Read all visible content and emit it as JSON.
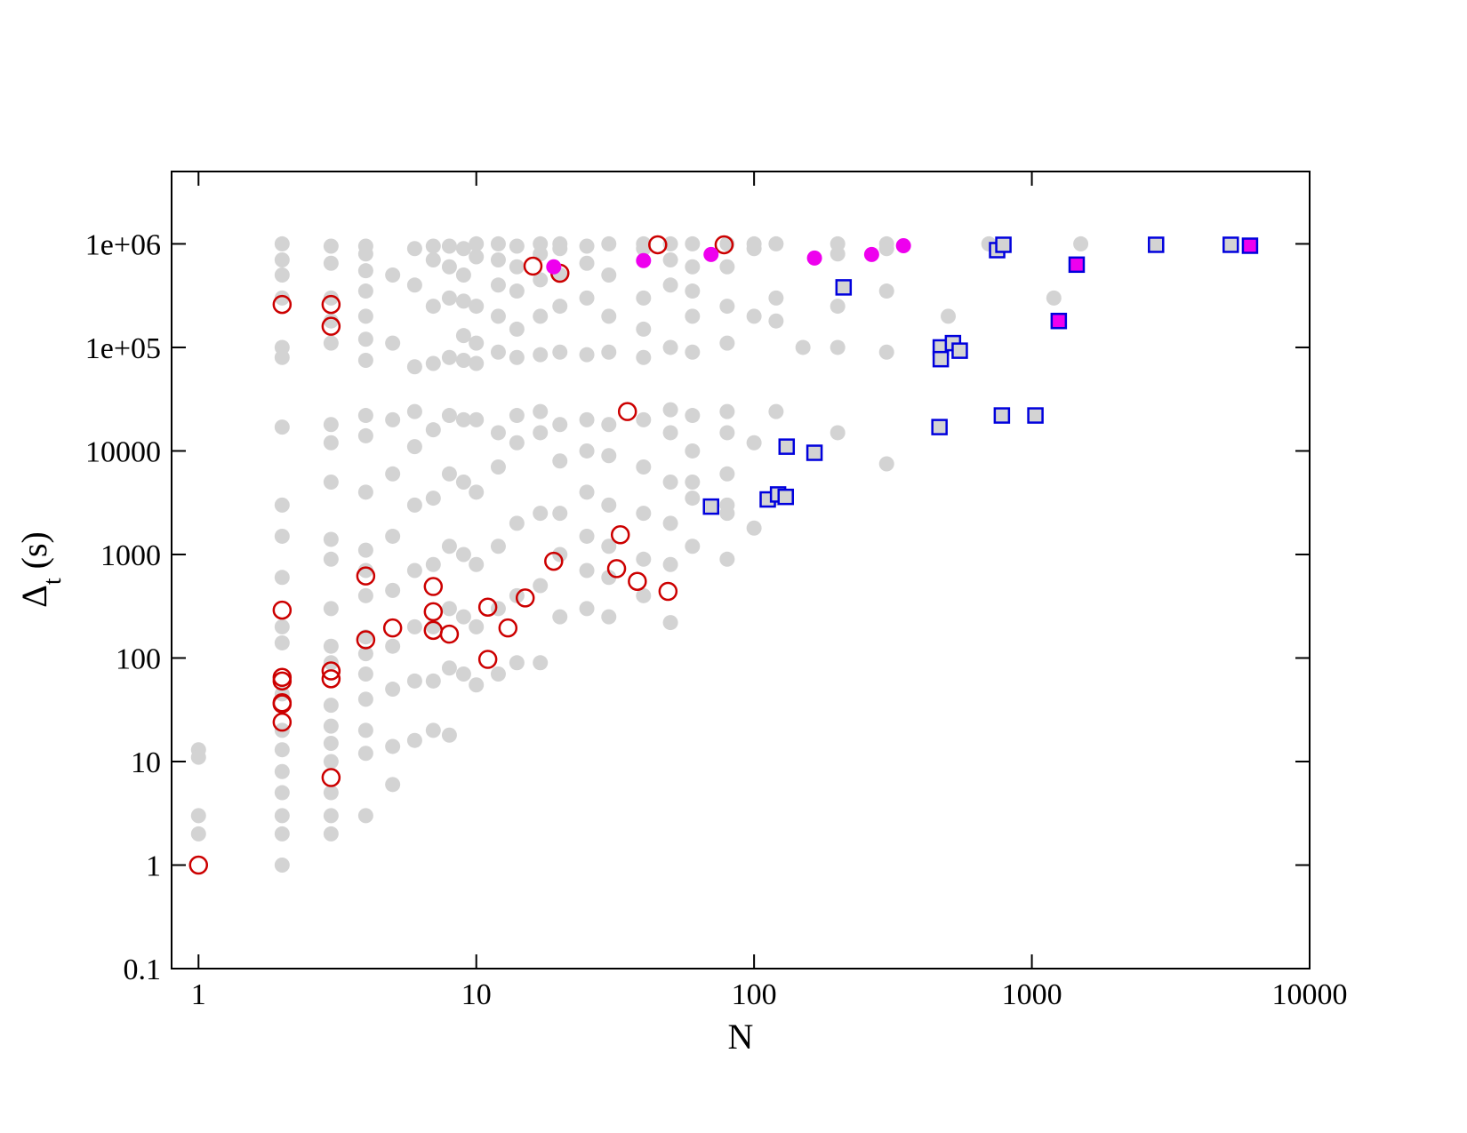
{
  "chart_data": {
    "type": "scatter",
    "xlabel": "N",
    "ylabel": [
      "Δ",
      "t",
      "(s)"
    ],
    "xscale": "log",
    "yscale": "log",
    "xlim": [
      0.8,
      10000
    ],
    "ylim": [
      0.1,
      5000000
    ],
    "xticks": [
      1,
      10,
      100,
      1000,
      10000
    ],
    "yticks": [
      0.1,
      1,
      10,
      100,
      1000,
      10000,
      {
        "value": 100000,
        "label": "1e+05"
      },
      {
        "value": 1000000,
        "label": "1e+06"
      }
    ],
    "series": [
      {
        "marker": "circle",
        "color": "#d3d3d3",
        "fill": "#d3d3d3",
        "x": [
          1,
          1,
          1,
          1,
          2,
          2,
          2,
          2,
          2,
          2,
          2,
          2,
          2,
          2,
          2,
          2,
          2,
          2,
          2,
          2,
          2,
          2,
          2,
          2,
          3,
          3,
          3,
          3,
          3,
          3,
          3,
          3,
          3,
          3,
          3,
          3,
          3,
          3,
          3,
          3,
          3,
          3,
          3,
          3,
          4,
          4,
          4,
          4,
          4,
          4,
          4,
          4,
          4,
          4,
          4,
          4,
          4,
          4,
          4,
          4,
          4,
          4,
          4,
          4,
          5,
          5,
          5,
          5,
          5,
          5,
          5,
          5,
          5,
          5,
          6,
          6,
          6,
          6,
          6,
          6,
          6,
          6,
          6,
          6,
          7,
          7,
          7,
          7,
          7,
          7,
          7,
          7,
          7,
          7,
          8,
          8,
          8,
          8,
          8,
          8,
          8,
          8,
          8,
          8,
          9,
          9,
          9,
          9,
          9,
          9,
          9,
          9,
          9,
          9,
          10,
          10,
          10,
          10,
          10,
          10,
          10,
          10,
          10,
          10,
          12,
          12,
          12,
          12,
          12,
          12,
          12,
          12,
          12,
          12,
          14,
          14,
          14,
          14,
          14,
          14,
          14,
          14,
          14,
          14,
          17,
          17,
          17,
          17,
          17,
          17,
          17,
          17,
          17,
          17,
          20,
          20,
          20,
          20,
          20,
          20,
          20,
          20,
          20,
          20,
          25,
          25,
          25,
          25,
          25,
          25,
          25,
          25,
          25,
          25,
          30,
          30,
          30,
          30,
          30,
          30,
          30,
          30,
          30,
          30,
          40,
          40,
          40,
          40,
          40,
          40,
          40,
          40,
          40,
          40,
          50,
          50,
          50,
          50,
          50,
          50,
          50,
          50,
          50,
          50,
          60,
          60,
          60,
          60,
          60,
          60,
          60,
          60,
          60,
          60,
          80,
          80,
          80,
          80,
          80,
          80,
          80,
          80,
          80,
          80,
          100,
          100,
          100,
          100,
          100,
          120,
          120,
          120,
          120,
          120,
          200,
          200,
          200,
          200,
          200,
          300,
          300,
          300,
          300,
          300,
          150,
          500,
          700,
          1200,
          1500
        ],
        "values": [
          13,
          11,
          3,
          2,
          1,
          3,
          8,
          20,
          45,
          140,
          600,
          3000,
          17000,
          100000,
          300000,
          700000,
          1000000,
          2,
          5,
          13,
          200,
          1500,
          80000,
          500000,
          2,
          5,
          15,
          35,
          90,
          300,
          900,
          5000,
          18000,
          110000,
          300000,
          650000,
          950000,
          3,
          10,
          22,
          130,
          1400,
          12000,
          180000,
          3,
          12,
          40,
          110,
          400,
          1100,
          4000,
          14000,
          75000,
          200000,
          350000,
          550000,
          950000,
          20,
          160,
          700,
          22000,
          120000,
          800000,
          70,
          6,
          14,
          50,
          130,
          450,
          1500,
          6000,
          20000,
          110000,
          500000,
          16,
          60,
          200,
          700,
          3000,
          11000,
          24000,
          65000,
          400000,
          900000,
          20,
          60,
          200,
          800,
          3500,
          16000,
          70000,
          250000,
          700000,
          950000,
          18,
          80,
          300,
          1200,
          6000,
          22000,
          80000,
          300000,
          600000,
          950000,
          70,
          250,
          1000,
          5000,
          20000,
          75000,
          130000,
          280000,
          500000,
          900000,
          55,
          200,
          800,
          4000,
          20000,
          70000,
          110000,
          250000,
          750000,
          1000000,
          70,
          300,
          1200,
          7000,
          15000,
          90000,
          200000,
          400000,
          700000,
          1000000,
          90,
          400,
          2000,
          12000,
          22000,
          80000,
          150000,
          350000,
          600000,
          950000,
          90,
          500,
          2500,
          15000,
          24000,
          85000,
          200000,
          450000,
          800000,
          1000000,
          250,
          1000,
          2500,
          8000,
          18000,
          90000,
          250000,
          500000,
          900000,
          1000000,
          300,
          1500,
          4000,
          10000,
          20000,
          85000,
          300000,
          650000,
          950000,
          700,
          250,
          1200,
          3000,
          9000,
          18000,
          90000,
          200000,
          500000,
          1000000,
          600,
          400,
          900,
          2500,
          7000,
          20000,
          80000,
          300000,
          900000,
          1000000,
          150000,
          220,
          800,
          2000,
          5000,
          15000,
          25000,
          100000,
          400000,
          1000000,
          700000,
          1200,
          3500,
          10000,
          22000,
          90000,
          350000,
          1000000,
          600000,
          200000,
          5000,
          900,
          2500,
          6000,
          15000,
          24000,
          110000,
          600000,
          1000000,
          250000,
          3000,
          1800,
          12000,
          200000,
          900000,
          1000000,
          3500,
          24000,
          180000,
          1000000,
          300000,
          15000,
          100000,
          250000,
          1000000,
          800000,
          7500,
          90000,
          350000,
          1000000,
          900000,
          100000,
          200000,
          1000000,
          300000,
          1000000
        ]
      },
      {
        "marker": "circle",
        "color": "#cc0000",
        "fill": "none",
        "x": [
          1,
          2,
          3,
          3,
          2,
          2,
          2,
          2,
          2,
          2,
          3,
          3,
          3,
          4,
          4,
          5,
          7,
          7,
          7,
          8,
          11,
          11,
          13,
          15,
          16,
          19,
          20,
          32,
          33,
          35,
          38,
          45,
          49,
          78
        ],
        "values": [
          1,
          260000,
          260000,
          160000,
          290,
          65,
          60,
          37,
          36,
          24,
          75,
          63,
          7,
          620,
          150,
          195,
          490,
          280,
          185,
          170,
          310,
          97,
          195,
          380,
          610000,
          860,
          520000,
          730,
          1550,
          24000,
          550,
          980000,
          440,
          980000
        ]
      },
      {
        "marker": "circle",
        "color": "#ee00ee",
        "fill": "#ee00ee",
        "x": [
          19,
          40,
          70,
          165,
          265,
          345
        ],
        "values": [
          600000,
          690000,
          790000,
          730000,
          790000,
          960000
        ]
      },
      {
        "marker": "square",
        "color": "#0000dd",
        "fill": "#d3d3d3",
        "x": [
          70,
          112,
          122,
          130,
          131,
          165,
          210,
          465,
          470,
          470,
          520,
          550,
          750,
          790,
          780,
          1030,
          2800,
          5200
        ],
        "values": [
          2900,
          3400,
          3800,
          3600,
          11000,
          9600,
          380000,
          17000,
          100000,
          77000,
          110000,
          93000,
          870000,
          980000,
          22000,
          22000,
          980000,
          980000
        ]
      },
      {
        "marker": "square",
        "color": "#0000dd",
        "fill": "#ee00ee",
        "x": [
          1250,
          1450,
          6100
        ],
        "values": [
          180000,
          630000,
          960000
        ]
      }
    ]
  }
}
